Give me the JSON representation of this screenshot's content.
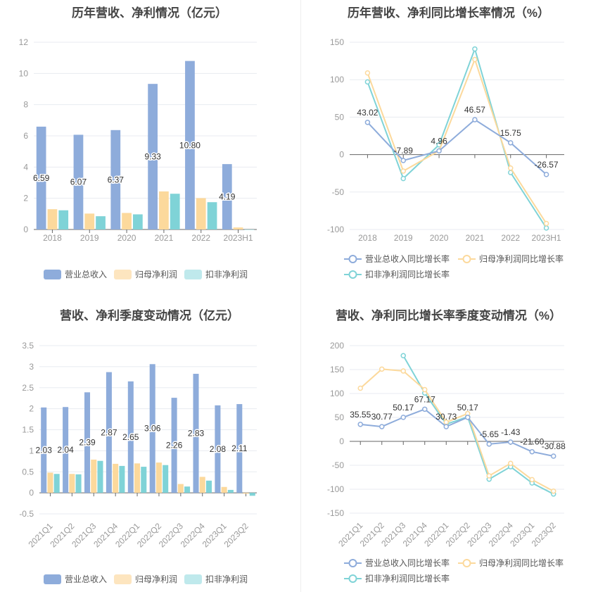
{
  "colors": {
    "revenue": "#8eacdb",
    "net": "#fcd99c",
    "deducted": "#7fd3d7",
    "revenue_legend": "#8eacdb",
    "net_legend": "#fde5bf",
    "deducted_legend": "#bfe9ec",
    "axis": "#666",
    "grid": "#e8ebf0",
    "tick_text": "#999",
    "label_text": "#333"
  },
  "chart_data": [
    {
      "type": "bar",
      "title": "历年营收、净利情况（亿元）",
      "categories": [
        "2018",
        "2019",
        "2020",
        "2021",
        "2022",
        "2023H1"
      ],
      "ylim": [
        0,
        12
      ],
      "yticks": [
        0,
        2,
        4,
        6,
        8,
        10,
        12
      ],
      "grid": true,
      "legend": "bottom",
      "series": [
        {
          "name": "营业总收入",
          "values": [
            6.59,
            6.07,
            6.37,
            9.33,
            10.8,
            4.19
          ],
          "labels": [
            "6.59",
            "6.07",
            "6.37",
            "9.33",
            "10.80",
            "4.19"
          ]
        },
        {
          "name": "归母净利润",
          "values": [
            1.3,
            1.02,
            1.06,
            2.44,
            2.01,
            0.13
          ]
        },
        {
          "name": "扣非净利润",
          "values": [
            1.23,
            0.85,
            0.97,
            2.29,
            1.75,
            0.0
          ]
        }
      ]
    },
    {
      "type": "line",
      "title": "历年营收、净利同比增长率情况（%）",
      "categories": [
        "2018",
        "2019",
        "2020",
        "2021",
        "2022",
        "2023H1"
      ],
      "ylim": [
        -100,
        150
      ],
      "yticks": [
        -100,
        -50,
        0,
        50,
        100,
        150
      ],
      "grid": true,
      "legend": "bottom",
      "series": [
        {
          "name": "营业总收入同比增长率",
          "values": [
            43.02,
            -7.89,
            4.96,
            46.57,
            15.75,
            -26.57
          ],
          "labels": [
            "43.02",
            "-7.89",
            "4.96",
            "46.57",
            "15.75",
            "-26.57"
          ]
        },
        {
          "name": "归母净利润同比增长率",
          "values": [
            109,
            -22,
            5,
            127,
            -18,
            -92
          ]
        },
        {
          "name": "扣非净利润同比增长率",
          "values": [
            97,
            -32,
            13,
            141,
            -24,
            -98
          ]
        }
      ]
    },
    {
      "type": "bar",
      "title": "营收、净利季度变动情况（亿元）",
      "categories": [
        "2021Q1",
        "2021Q2",
        "2021Q3",
        "2021Q4",
        "2022Q1",
        "2022Q2",
        "2022Q3",
        "2022Q4",
        "2023Q1",
        "2023Q2"
      ],
      "ylim": [
        -0.5,
        3.5
      ],
      "yticks": [
        -0.5,
        0,
        0.5,
        1,
        1.5,
        2,
        2.5,
        3,
        3.5
      ],
      "grid": true,
      "legend": "bottom",
      "series": [
        {
          "name": "营业总收入",
          "values": [
            2.03,
            2.04,
            2.39,
            2.87,
            2.65,
            3.06,
            2.26,
            2.83,
            2.08,
            2.11
          ],
          "labels": [
            "2.03",
            "2.04",
            "2.39",
            "2.87",
            "2.65",
            "3.06",
            "2.26",
            "2.83",
            "2.08",
            "2.11"
          ]
        },
        {
          "name": "归母净利润",
          "values": [
            0.48,
            0.45,
            0.79,
            0.69,
            0.7,
            0.72,
            0.21,
            0.38,
            0.14,
            -0.02
          ]
        },
        {
          "name": "扣非净利润",
          "values": [
            0.45,
            0.44,
            0.76,
            0.64,
            0.62,
            0.66,
            0.15,
            0.29,
            0.07,
            -0.07
          ]
        }
      ]
    },
    {
      "type": "line",
      "title": "营收、净利同比增长率季度变动情况（%）",
      "categories": [
        "2021Q1",
        "2021Q2",
        "2021Q3",
        "2021Q4",
        "2022Q1",
        "2022Q2",
        "2022Q3",
        "2022Q4",
        "2023Q1",
        "2023Q2"
      ],
      "ylim": [
        -150,
        200
      ],
      "yticks": [
        -150,
        -100,
        -50,
        0,
        50,
        100,
        150,
        200
      ],
      "grid": true,
      "legend": "bottom",
      "series": [
        {
          "name": "营业总收入同比增长率",
          "values": [
            35.55,
            30.77,
            50.17,
            67.17,
            30.73,
            50.17,
            -5.65,
            -1.43,
            -21.6,
            -30.88
          ],
          "labels": [
            "35.55",
            "30.77",
            "50.17",
            "67.17",
            "30.73",
            "50.17",
            "-5.65",
            "-1.43",
            "-21.60",
            "-30.88"
          ]
        },
        {
          "name": "归母净利润同比增长率",
          "values": [
            111,
            151,
            147,
            108,
            40,
            58,
            -72,
            -46,
            -80,
            -104
          ]
        },
        {
          "name": "扣非净利润同比增长率",
          "values": [
            null,
            null,
            179,
            101,
            36,
            51,
            -79,
            -53,
            -87,
            -110
          ]
        }
      ]
    }
  ]
}
